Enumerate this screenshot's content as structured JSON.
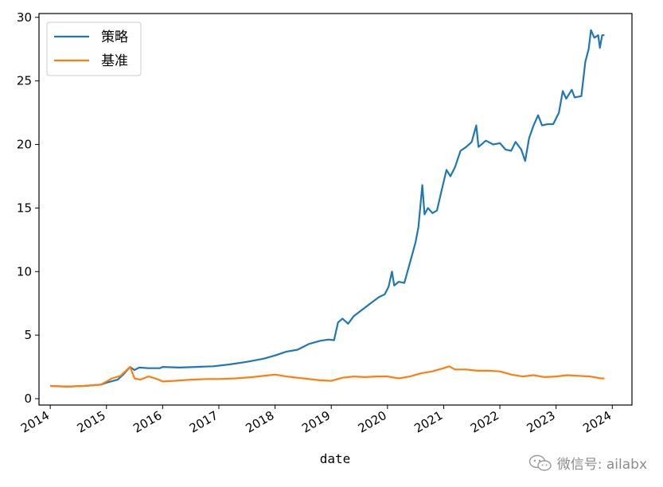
{
  "chart_data": {
    "type": "line",
    "xlabel": "date",
    "ylabel": "",
    "title": "",
    "xlim": [
      2013.8,
      2024.35
    ],
    "ylim": [
      -0.5,
      30.3
    ],
    "yticks": [
      0,
      5,
      10,
      15,
      20,
      25,
      30
    ],
    "xticks": [
      "2014",
      "2015",
      "2016",
      "2017",
      "2018",
      "2019",
      "2020",
      "2021",
      "2022",
      "2023",
      "2024"
    ],
    "grid": false,
    "legend_position": "top-left",
    "series": [
      {
        "name": "策略",
        "color": "#1f77b4",
        "points": [
          [
            2014.0,
            1.0
          ],
          [
            2014.3,
            0.95
          ],
          [
            2014.6,
            1.0
          ],
          [
            2014.9,
            1.1
          ],
          [
            2015.0,
            1.25
          ],
          [
            2015.2,
            1.5
          ],
          [
            2015.3,
            1.9
          ],
          [
            2015.42,
            2.5
          ],
          [
            2015.5,
            2.25
          ],
          [
            2015.58,
            2.45
          ],
          [
            2015.75,
            2.4
          ],
          [
            2015.95,
            2.4
          ],
          [
            2016.0,
            2.5
          ],
          [
            2016.3,
            2.45
          ],
          [
            2016.6,
            2.5
          ],
          [
            2016.9,
            2.55
          ],
          [
            2017.2,
            2.7
          ],
          [
            2017.5,
            2.9
          ],
          [
            2017.8,
            3.15
          ],
          [
            2018.0,
            3.4
          ],
          [
            2018.2,
            3.7
          ],
          [
            2018.4,
            3.85
          ],
          [
            2018.6,
            4.3
          ],
          [
            2018.8,
            4.55
          ],
          [
            2018.95,
            4.65
          ],
          [
            2019.05,
            4.6
          ],
          [
            2019.12,
            6.0
          ],
          [
            2019.2,
            6.3
          ],
          [
            2019.3,
            5.9
          ],
          [
            2019.4,
            6.5
          ],
          [
            2019.55,
            7.0
          ],
          [
            2019.7,
            7.5
          ],
          [
            2019.85,
            8.0
          ],
          [
            2019.95,
            8.2
          ],
          [
            2020.02,
            8.8
          ],
          [
            2020.08,
            10.0
          ],
          [
            2020.12,
            8.9
          ],
          [
            2020.2,
            9.2
          ],
          [
            2020.3,
            9.1
          ],
          [
            2020.45,
            11.5
          ],
          [
            2020.5,
            12.3
          ],
          [
            2020.55,
            13.5
          ],
          [
            2020.62,
            16.8
          ],
          [
            2020.66,
            14.5
          ],
          [
            2020.72,
            15.0
          ],
          [
            2020.8,
            14.6
          ],
          [
            2020.88,
            14.8
          ],
          [
            2020.97,
            16.5
          ],
          [
            2021.05,
            18.0
          ],
          [
            2021.12,
            17.5
          ],
          [
            2021.2,
            18.2
          ],
          [
            2021.3,
            19.5
          ],
          [
            2021.4,
            19.8
          ],
          [
            2021.5,
            20.2
          ],
          [
            2021.58,
            21.5
          ],
          [
            2021.62,
            19.8
          ],
          [
            2021.75,
            20.3
          ],
          [
            2021.88,
            20.0
          ],
          [
            2022.0,
            20.1
          ],
          [
            2022.1,
            19.6
          ],
          [
            2022.2,
            19.5
          ],
          [
            2022.28,
            20.2
          ],
          [
            2022.38,
            19.6
          ],
          [
            2022.45,
            18.7
          ],
          [
            2022.52,
            20.5
          ],
          [
            2022.6,
            21.5
          ],
          [
            2022.68,
            22.3
          ],
          [
            2022.75,
            21.5
          ],
          [
            2022.85,
            21.6
          ],
          [
            2022.95,
            21.6
          ],
          [
            2023.05,
            22.5
          ],
          [
            2023.12,
            24.2
          ],
          [
            2023.18,
            23.6
          ],
          [
            2023.28,
            24.3
          ],
          [
            2023.33,
            23.7
          ],
          [
            2023.45,
            23.8
          ],
          [
            2023.52,
            26.5
          ],
          [
            2023.58,
            27.5
          ],
          [
            2023.62,
            29.0
          ],
          [
            2023.68,
            28.4
          ],
          [
            2023.75,
            28.6
          ],
          [
            2023.78,
            27.6
          ],
          [
            2023.82,
            28.6
          ],
          [
            2023.86,
            28.6
          ]
        ]
      },
      {
        "name": "基准",
        "color": "#ff7f0e",
        "points": [
          [
            2014.0,
            1.0
          ],
          [
            2014.3,
            0.95
          ],
          [
            2014.6,
            1.0
          ],
          [
            2014.9,
            1.1
          ],
          [
            2015.0,
            1.35
          ],
          [
            2015.1,
            1.6
          ],
          [
            2015.25,
            1.8
          ],
          [
            2015.42,
            2.5
          ],
          [
            2015.5,
            1.6
          ],
          [
            2015.6,
            1.5
          ],
          [
            2015.75,
            1.75
          ],
          [
            2015.9,
            1.55
          ],
          [
            2016.0,
            1.35
          ],
          [
            2016.2,
            1.4
          ],
          [
            2016.5,
            1.5
          ],
          [
            2016.8,
            1.55
          ],
          [
            2017.0,
            1.55
          ],
          [
            2017.3,
            1.6
          ],
          [
            2017.6,
            1.7
          ],
          [
            2017.9,
            1.85
          ],
          [
            2018.0,
            1.9
          ],
          [
            2018.2,
            1.75
          ],
          [
            2018.5,
            1.6
          ],
          [
            2018.8,
            1.45
          ],
          [
            2019.0,
            1.4
          ],
          [
            2019.2,
            1.65
          ],
          [
            2019.4,
            1.75
          ],
          [
            2019.6,
            1.7
          ],
          [
            2019.8,
            1.75
          ],
          [
            2020.0,
            1.75
          ],
          [
            2020.2,
            1.6
          ],
          [
            2020.4,
            1.75
          ],
          [
            2020.6,
            2.0
          ],
          [
            2020.8,
            2.15
          ],
          [
            2021.0,
            2.4
          ],
          [
            2021.1,
            2.55
          ],
          [
            2021.2,
            2.3
          ],
          [
            2021.4,
            2.3
          ],
          [
            2021.6,
            2.2
          ],
          [
            2021.8,
            2.2
          ],
          [
            2022.0,
            2.15
          ],
          [
            2022.2,
            1.9
          ],
          [
            2022.4,
            1.75
          ],
          [
            2022.6,
            1.85
          ],
          [
            2022.8,
            1.7
          ],
          [
            2023.0,
            1.75
          ],
          [
            2023.2,
            1.85
          ],
          [
            2023.4,
            1.8
          ],
          [
            2023.6,
            1.75
          ],
          [
            2023.8,
            1.6
          ],
          [
            2023.86,
            1.6
          ]
        ]
      }
    ]
  },
  "watermark": {
    "text": "微信号: ailabx",
    "icon": "wechat-icon"
  }
}
